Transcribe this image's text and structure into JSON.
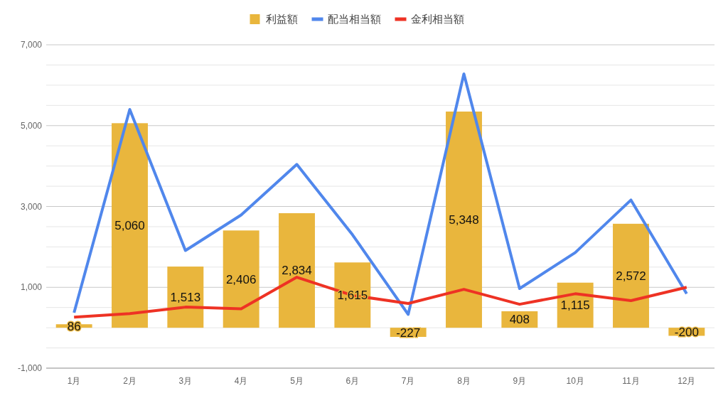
{
  "chart_data": {
    "type": "bar",
    "categories": [
      "1月",
      "2月",
      "3月",
      "4月",
      "5月",
      "6月",
      "7月",
      "8月",
      "9月",
      "10月",
      "11月",
      "12月"
    ],
    "series": [
      {
        "name": "利益額",
        "color": "#e9b63d",
        "values": [
          86,
          5060,
          1513,
          2406,
          2834,
          1615,
          -227,
          5348,
          408,
          1115,
          2572,
          -200
        ],
        "value_labels": [
          "86",
          "5,060",
          "1,513",
          "2,406",
          "2,834",
          "1,615",
          "-227",
          "5,348",
          "408",
          "1,115",
          "2,572",
          "-200"
        ]
      },
      {
        "name": "配当相当額",
        "type": "line",
        "color": "#5087ec",
        "values": [
          370,
          5400,
          1910,
          2790,
          4040,
          2300,
          330,
          6280,
          970,
          1860,
          3160,
          840
        ]
      },
      {
        "name": "金利相当額",
        "type": "line",
        "color": "#ee3224",
        "values": [
          260,
          350,
          510,
          470,
          1250,
          800,
          600,
          950,
          580,
          840,
          670,
          1000
        ]
      }
    ],
    "ylim": [
      -1000,
      7000
    ],
    "yticks": [
      {
        "value": -1000,
        "label": "-1,000"
      },
      {
        "value": -500,
        "label": null
      },
      {
        "value": 0,
        "label": null
      },
      {
        "value": 500,
        "label": null
      },
      {
        "value": 1000,
        "label": "1,000"
      },
      {
        "value": 1500,
        "label": null
      },
      {
        "value": 2000,
        "label": null
      },
      {
        "value": 2500,
        "label": null
      },
      {
        "value": 3000,
        "label": "3,000"
      },
      {
        "value": 3500,
        "label": null
      },
      {
        "value": 4000,
        "label": null
      },
      {
        "value": 4500,
        "label": null
      },
      {
        "value": 5000,
        "label": "5,000"
      },
      {
        "value": 5500,
        "label": null
      },
      {
        "value": 6000,
        "label": null
      },
      {
        "value": 6500,
        "label": null
      },
      {
        "value": 7000,
        "label": "7,000"
      }
    ],
    "grid": true,
    "legend": "top",
    "line_style": "solid",
    "marker": "none"
  }
}
